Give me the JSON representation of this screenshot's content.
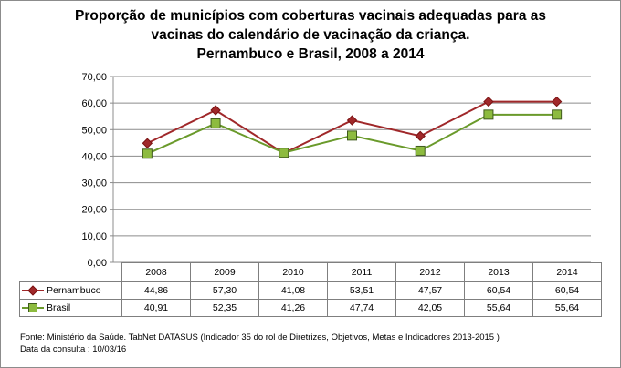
{
  "title": {
    "line1": "Proporção de municípios com coberturas vacinais adequadas para as",
    "line2": "vacinas do calendário de vacinação da criança.",
    "line3": "Pernambuco e Brasil, 2008 a 2014"
  },
  "chart_data": {
    "type": "line",
    "title": "Proporção de municípios com coberturas vacinais adequadas para as vacinas do calendário de vacinação da criança. Pernambuco e Brasil, 2008 a 2014",
    "categories": [
      "2008",
      "2009",
      "2010",
      "2011",
      "2012",
      "2013",
      "2014"
    ],
    "ylim": [
      0,
      70
    ],
    "yticks": [
      "0,00",
      "10,00",
      "20,00",
      "30,00",
      "40,00",
      "50,00",
      "60,00",
      "70,00"
    ],
    "grid": true,
    "legend": "data-table",
    "series": [
      {
        "name": "Pernambuco",
        "values": [
          44.86,
          57.3,
          41.08,
          53.51,
          47.57,
          60.54,
          60.54
        ],
        "labels": [
          "44,86",
          "57,30",
          "41,08",
          "53,51",
          "47,57",
          "60,54",
          "60,54"
        ],
        "color": "#a0282a",
        "marker": "diamond"
      },
      {
        "name": "Brasil",
        "values": [
          40.91,
          52.35,
          41.26,
          47.74,
          42.05,
          55.64,
          55.64
        ],
        "labels": [
          "40,91",
          "52,35",
          "41,26",
          "47,74",
          "42,05",
          "55,64",
          "55,64"
        ],
        "color": "#6a9a2b",
        "marker": "square"
      }
    ]
  },
  "source": {
    "line1": "Fonte: Ministério da Saúde. TabNet DATASUS (Indicador 35 do rol de Diretrizes, Objetivos, Metas e Indicadores 2013-2015 )",
    "line2": "Data da consulta : 10/03/16"
  }
}
